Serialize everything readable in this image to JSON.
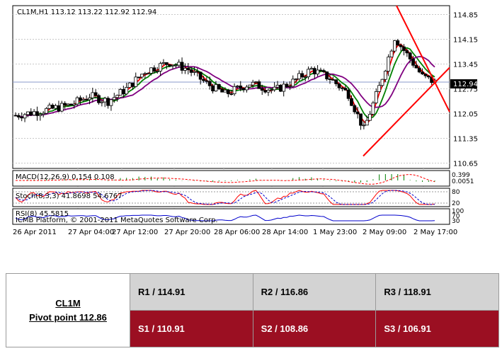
{
  "chart_data": {
    "type": "candlestick",
    "title": "CL1M,H1  113.12 113.22 112.92 112.94",
    "current_price": "112.94",
    "price_axis_ticks": [
      "114.85",
      "114.15",
      "113.45",
      "112.75",
      "112.05",
      "111.35",
      "110.65"
    ],
    "time_axis_ticks": [
      "26 Apr 2011",
      "27 Apr 04:00",
      "27 Apr 12:00",
      "27 Apr 20:00",
      "28 Apr 06:00",
      "28 Apr 14:00",
      "1 May 23:00",
      "2 May 09:00",
      "2 May 17:00"
    ],
    "ylim": [
      110.5,
      115.1
    ],
    "indicators": {
      "macd": {
        "label": "MACD(12,26,9) 0.154 0.108",
        "ticks": [
          "0.399",
          "0.0051"
        ]
      },
      "stoch": {
        "label": "Stoch(8,3,3) 41.8698 54.6767",
        "ticks": [
          "80",
          "20"
        ]
      },
      "rsi": {
        "label": "RSI(8) 45.5815",
        "ticks": [
          "100",
          "70",
          "30"
        ]
      }
    },
    "copyright": "ICMB Platform, © 2001-2011 MetaQuotes Software Corp."
  },
  "pivot_table": {
    "symbol": "CL1M",
    "pivot": "Pivot point 112.86",
    "resistance": [
      "R1 / 114.91",
      "R2 / 116.86",
      "R3 / 118.91"
    ],
    "support": [
      "S1 / 110.91",
      "S2 /  108.86",
      "S3 /  106.91"
    ]
  },
  "colors": {
    "bull_candle": "#ffffff",
    "bear_candle": "#000000",
    "ma_fast": "#ff0000",
    "ma_mid": "#008000",
    "ma_slow": "#800080",
    "trend_lines": "#ff0000",
    "support_row": "#9b0f22",
    "resistance_row": "#d3d3d3"
  }
}
